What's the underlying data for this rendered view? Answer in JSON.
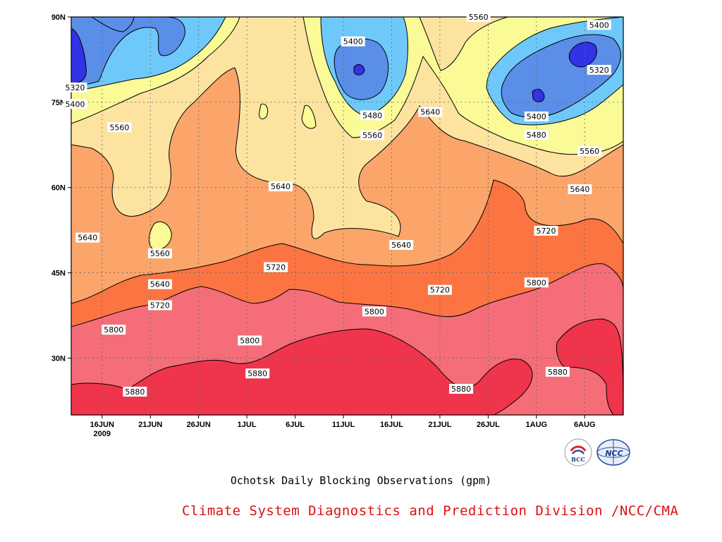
{
  "chart_data": {
    "type": "contour",
    "title": "Ochotsk Daily Blocking Observations (gpm)",
    "x_tick_labels": [
      "16JUN",
      "21JUN",
      "26JUN",
      "1JUL",
      "6JUL",
      "11JUL",
      "16JUL",
      "21JUL",
      "26JUL",
      "1AUG",
      "6AUG"
    ],
    "x_year_label": "2009",
    "x_ticks_day": [
      0,
      5,
      10,
      15,
      20,
      25,
      30,
      35,
      40,
      45,
      50
    ],
    "xlim_day": [
      -3.2,
      54
    ],
    "y_tick_labels": [
      "30N",
      "45N",
      "60N",
      "75N",
      "90N"
    ],
    "y_ticks": [
      30,
      45,
      60,
      75,
      90
    ],
    "ylim": [
      20,
      90
    ],
    "contour_levels": [
      5320,
      5400,
      5480,
      5560,
      5640,
      5720,
      5800,
      5880
    ],
    "fill_colors": {
      "below_5320": "#3232e6",
      "5320_5400": "#5a8ee8",
      "5400_5480": "#6ec8fa",
      "5480_5560": "#fafa96",
      "5560_5640": "#fde3a0",
      "5640_5720": "#fba56a",
      "5720_5800": "#fb7441",
      "5800_5880": "#f56d78",
      "above_5880": "#f0344b"
    },
    "contour_labels": [
      {
        "value": "5320",
        "day": -2.8,
        "lat": 77.6
      },
      {
        "value": "5400",
        "day": -2.8,
        "lat": 74.7
      },
      {
        "value": "5560",
        "day": 1.8,
        "lat": 70.6
      },
      {
        "value": "5640",
        "day": -1.5,
        "lat": 51.2
      },
      {
        "value": "5560",
        "day": 6.0,
        "lat": 48.4
      },
      {
        "value": "5640",
        "day": 6.0,
        "lat": 43.0
      },
      {
        "value": "5720",
        "day": 6.0,
        "lat": 39.3
      },
      {
        "value": "5800",
        "day": 1.2,
        "lat": 35.0
      },
      {
        "value": "5880",
        "day": 3.4,
        "lat": 24.1
      },
      {
        "value": "5640",
        "day": 18.5,
        "lat": 60.2
      },
      {
        "value": "5720",
        "day": 18.0,
        "lat": 46.0
      },
      {
        "value": "5800",
        "day": 15.3,
        "lat": 33.1
      },
      {
        "value": "5880",
        "day": 16.1,
        "lat": 27.3
      },
      {
        "value": "5400",
        "day": 26.0,
        "lat": 85.7
      },
      {
        "value": "5480",
        "day": 28.0,
        "lat": 72.7
      },
      {
        "value": "5560",
        "day": 28.0,
        "lat": 69.2
      },
      {
        "value": "5640",
        "day": 34.0,
        "lat": 73.3
      },
      {
        "value": "5640",
        "day": 31.0,
        "lat": 49.9
      },
      {
        "value": "5800",
        "day": 28.2,
        "lat": 38.2
      },
      {
        "value": "5720",
        "day": 35.0,
        "lat": 42.0
      },
      {
        "value": "5880",
        "day": 37.2,
        "lat": 24.6
      },
      {
        "value": "5560",
        "day": 39.0,
        "lat": 90.0
      },
      {
        "value": "5400",
        "day": 51.5,
        "lat": 88.6
      },
      {
        "value": "5320",
        "day": 51.5,
        "lat": 80.7
      },
      {
        "value": "5400",
        "day": 45.0,
        "lat": 72.5
      },
      {
        "value": "5480",
        "day": 45.0,
        "lat": 69.3
      },
      {
        "value": "5560",
        "day": 50.5,
        "lat": 66.4
      },
      {
        "value": "5640",
        "day": 49.5,
        "lat": 59.7
      },
      {
        "value": "5720",
        "day": 46.0,
        "lat": 52.4
      },
      {
        "value": "5800",
        "day": 45.0,
        "lat": 43.3
      },
      {
        "value": "5880",
        "day": 47.2,
        "lat": 27.6
      }
    ]
  },
  "credit": "Climate System Diagnostics and Prediction Division /NCC/CMA",
  "logos": [
    {
      "name": "bcc-logo",
      "text": "BCC"
    },
    {
      "name": "ncc-logo",
      "text": "NCC"
    }
  ]
}
